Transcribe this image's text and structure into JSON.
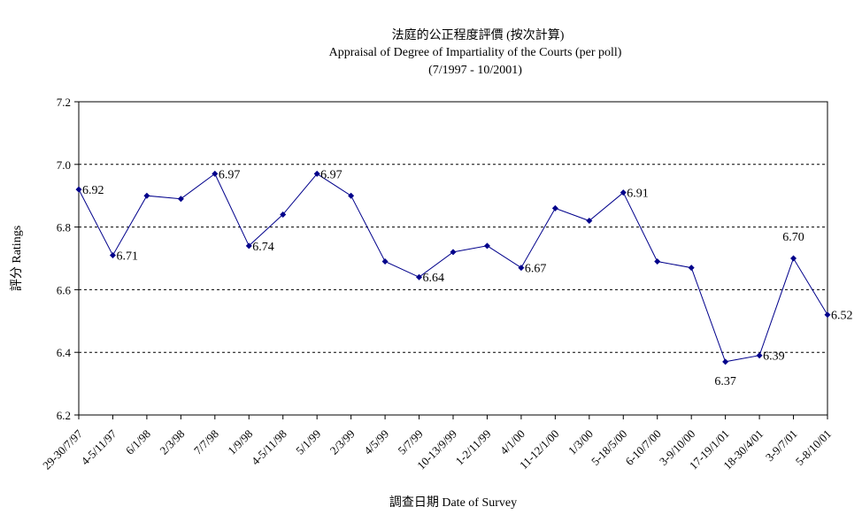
{
  "chart_data": {
    "type": "line",
    "title": "法庭的公正程度評價 (按次計算)",
    "subtitle": "Appraisal of Degree of Impartiality of the Courts (per poll)",
    "period": "(7/1997 - 10/2001)",
    "xlabel": "調查日期 Date of Survey",
    "ylabel": "評分 Ratings",
    "ylim": [
      6.2,
      7.2
    ],
    "yticks": [
      "6.2",
      "6.4",
      "6.6",
      "6.8",
      "7.0",
      "7.2"
    ],
    "grid": true,
    "categories": [
      "29-30/7/97",
      "4-5/11/97",
      "6/1/98",
      "2/3/98",
      "7/7/98",
      "1/9/98",
      "4-5/11/98",
      "5/1/99",
      "2/3/99",
      "4/5/99",
      "5/7/99",
      "10-13/9/99",
      "1-2/11/99",
      "4/1/00",
      "11-12/1/00",
      "1/3/00",
      "5-18/5/00",
      "6-10/7/00",
      "3-9/10/00",
      "17-19/1/01",
      "18-30/4/01",
      "3-9/7/01",
      "5-8/10/01"
    ],
    "series": [
      {
        "color": "#00008b",
        "values": [
          6.92,
          6.71,
          6.9,
          6.89,
          6.97,
          6.74,
          6.84,
          6.97,
          6.9,
          6.69,
          6.64,
          6.72,
          6.74,
          6.67,
          6.86,
          6.82,
          6.91,
          6.69,
          6.67,
          6.37,
          6.39,
          6.7,
          6.52
        ]
      }
    ],
    "data_labels": [
      {
        "index": 0,
        "text": "6.92",
        "pos": "right"
      },
      {
        "index": 1,
        "text": "6.71",
        "pos": "right"
      },
      {
        "index": 4,
        "text": "6.97",
        "pos": "right"
      },
      {
        "index": 5,
        "text": "6.74",
        "pos": "right"
      },
      {
        "index": 7,
        "text": "6.97",
        "pos": "right"
      },
      {
        "index": 10,
        "text": "6.64",
        "pos": "right"
      },
      {
        "index": 13,
        "text": "6.67",
        "pos": "right"
      },
      {
        "index": 16,
        "text": "6.91",
        "pos": "right"
      },
      {
        "index": 19,
        "text": "6.37",
        "pos": "below"
      },
      {
        "index": 20,
        "text": "6.39",
        "pos": "right"
      },
      {
        "index": 21,
        "text": "6.70",
        "pos": "above"
      },
      {
        "index": 22,
        "text": "6.52",
        "pos": "right"
      }
    ]
  }
}
